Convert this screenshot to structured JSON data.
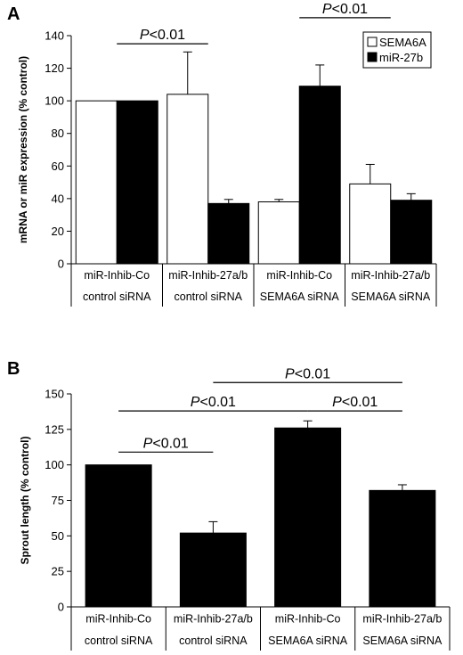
{
  "chart_data": [
    {
      "panel": "A",
      "type": "bar",
      "ylabel": "mRNA or miR expression (% control)",
      "ylim": [
        0,
        140
      ],
      "yticks": [
        0,
        20,
        40,
        60,
        80,
        100,
        120,
        140
      ],
      "categories": [
        [
          "miR-Inhib-Co",
          "control siRNA"
        ],
        [
          "miR-Inhib-27a/b",
          "control siRNA"
        ],
        [
          "miR-Inhib-Co",
          "SEMA6A siRNA"
        ],
        [
          "miR-Inhib-27a/b",
          "SEMA6A siRNA"
        ]
      ],
      "series": [
        {
          "name": "SEMA6A",
          "color": "#ffffff",
          "values": [
            100,
            104,
            38,
            49
          ],
          "errors": [
            0,
            26,
            1.5,
            12
          ]
        },
        {
          "name": "miR-27b",
          "color": "#000000",
          "values": [
            100,
            37,
            109,
            39
          ],
          "errors": [
            0,
            2.5,
            13,
            4
          ]
        }
      ],
      "legend": "top-right",
      "annotations": [
        {
          "italic": "P",
          "text": "<0.01",
          "from_category": 0,
          "to_category": 1,
          "level": 135
        },
        {
          "italic": "P",
          "text": "<0.01",
          "from_category": 2,
          "to_category": 3,
          "level": 151
        }
      ]
    },
    {
      "panel": "B",
      "type": "bar",
      "ylabel": "Sprout length (% control)",
      "ylim": [
        0,
        150
      ],
      "yticks": [
        0,
        25,
        50,
        75,
        100,
        125,
        150
      ],
      "categories": [
        [
          "miR-Inhib-Co",
          "control siRNA"
        ],
        [
          "miR-Inhib-27a/b",
          "control siRNA"
        ],
        [
          "miR-Inhib-Co",
          "SEMA6A siRNA"
        ],
        [
          "miR-Inhib-27a/b",
          "SEMA6A siRNA"
        ]
      ],
      "series": [
        {
          "name": "",
          "color": "#000000",
          "values": [
            100,
            52,
            126,
            82
          ],
          "errors": [
            0,
            8,
            5,
            4
          ]
        }
      ],
      "annotations": [
        {
          "italic": "P",
          "text": "<0.01",
          "from_category": 0,
          "to_category": 1,
          "level": 109
        },
        {
          "italic": "P",
          "text": "<0.01",
          "from_category": 0,
          "to_category": 2,
          "level": 138
        },
        {
          "italic": "P",
          "text": "<0.01",
          "from_category": 2,
          "to_category": 3,
          "level": 138
        },
        {
          "italic": "P",
          "text": "<0.01",
          "from_category": 1,
          "to_category": 3,
          "level": 158
        }
      ]
    }
  ]
}
